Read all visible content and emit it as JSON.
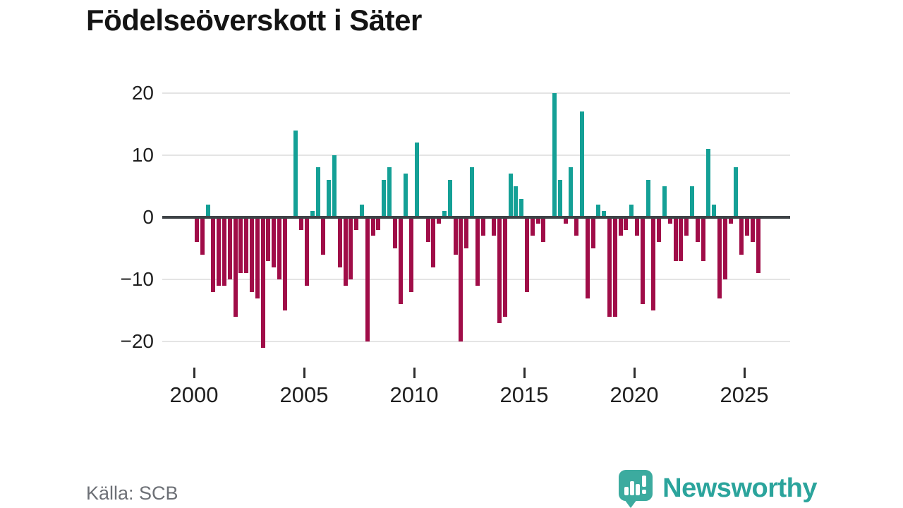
{
  "header": {
    "title": "Födelseöverskott i Säter"
  },
  "footer": {
    "source_label": "Källa: SCB",
    "logo_text": "Newsworthy"
  },
  "colors": {
    "positive": "#14a096",
    "negative": "#a00d48",
    "zero_line": "#3e4347",
    "gridline": "#e4e4e4",
    "logo_teal": "#2ba49c"
  },
  "chart_data": {
    "type": "bar",
    "title": "Födelseöverskott i Säter",
    "x_start": "2000 Q1",
    "x_end": "2025 Q3",
    "frequency": "quarterly",
    "y_ticks": [
      20,
      10,
      0,
      -10,
      -20
    ],
    "ylim": [
      -22,
      21
    ],
    "x_tick_years": [
      2000,
      2005,
      2010,
      2015,
      2020,
      2025
    ],
    "grid": "horizontal-only",
    "legend": "none",
    "series": [
      {
        "year": 2000,
        "values": [
          -4,
          -6,
          2,
          -12
        ]
      },
      {
        "year": 2001,
        "values": [
          -11,
          -11,
          -10,
          -16
        ]
      },
      {
        "year": 2002,
        "values": [
          -9,
          -9,
          -12,
          -13
        ]
      },
      {
        "year": 2003,
        "values": [
          -21,
          -7,
          -8,
          -10
        ]
      },
      {
        "year": 2004,
        "values": [
          -15,
          0,
          14,
          -2
        ]
      },
      {
        "year": 2005,
        "values": [
          -11,
          1,
          8,
          -6
        ]
      },
      {
        "year": 2006,
        "values": [
          6,
          10,
          -8,
          -11
        ]
      },
      {
        "year": 2007,
        "values": [
          -10,
          -2,
          2,
          -20
        ]
      },
      {
        "year": 2008,
        "values": [
          -3,
          -2,
          6,
          8
        ]
      },
      {
        "year": 2009,
        "values": [
          -5,
          -14,
          7,
          -12
        ]
      },
      {
        "year": 2010,
        "values": [
          12,
          0,
          -4,
          -8
        ]
      },
      {
        "year": 2011,
        "values": [
          -1,
          1,
          6,
          -6
        ]
      },
      {
        "year": 2012,
        "values": [
          -20,
          -5,
          8,
          -11
        ]
      },
      {
        "year": 2013,
        "values": [
          -3,
          0,
          -3,
          -17
        ]
      },
      {
        "year": 2014,
        "values": [
          -16,
          7,
          5,
          3
        ]
      },
      {
        "year": 2015,
        "values": [
          -12,
          -3,
          -1,
          -4
        ]
      },
      {
        "year": 2016,
        "values": [
          0,
          20,
          6,
          -1
        ]
      },
      {
        "year": 2017,
        "values": [
          8,
          -3,
          17,
          -13
        ]
      },
      {
        "year": 2018,
        "values": [
          -5,
          2,
          1,
          -16
        ]
      },
      {
        "year": 2019,
        "values": [
          -16,
          -3,
          -2,
          2
        ]
      },
      {
        "year": 2020,
        "values": [
          -3,
          -14,
          6,
          -15
        ]
      },
      {
        "year": 2021,
        "values": [
          -4,
          5,
          -1,
          -7
        ]
      },
      {
        "year": 2022,
        "values": [
          -7,
          -3,
          5,
          -4
        ]
      },
      {
        "year": 2023,
        "values": [
          -7,
          11,
          2,
          -13
        ]
      },
      {
        "year": 2024,
        "values": [
          -10,
          -1,
          8,
          -6
        ]
      },
      {
        "year": 2025,
        "values": [
          -3,
          -4,
          -9
        ]
      }
    ]
  }
}
